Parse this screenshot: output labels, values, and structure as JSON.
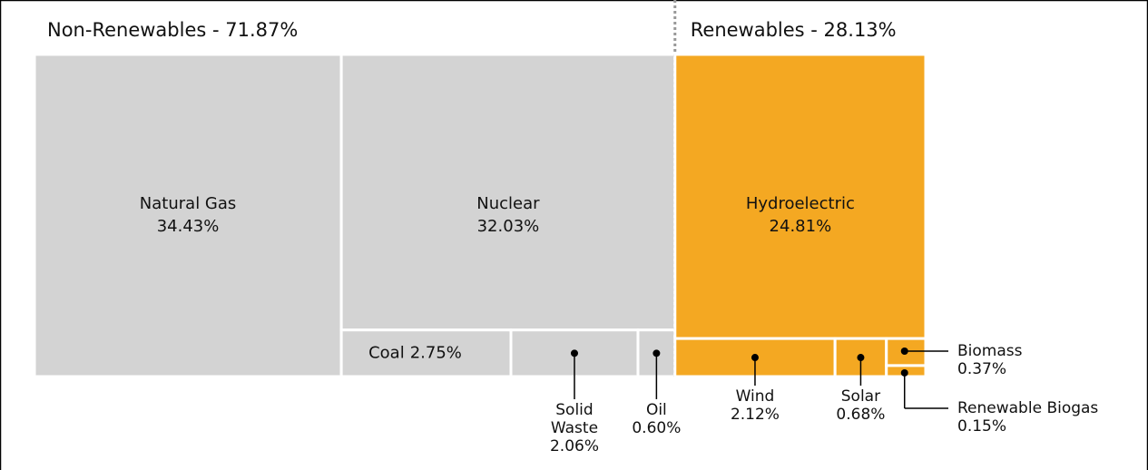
{
  "chart_data": {
    "type": "treemap",
    "groups": [
      {
        "name": "Non-Renewables",
        "label": "Non-Renewables - 71.87%",
        "value": 71.87,
        "color": "#d3d3d3",
        "items": [
          {
            "name": "Natural Gas",
            "value": 34.43,
            "value_label": "34.43%"
          },
          {
            "name": "Nuclear",
            "value": 32.03,
            "value_label": "32.03%"
          },
          {
            "name": "Coal",
            "value": 2.75,
            "value_label": "2.75%"
          },
          {
            "name": "Solid Waste",
            "value": 2.06,
            "value_label": "2.06%"
          },
          {
            "name": "Oil",
            "value": 0.6,
            "value_label": "0.60%"
          }
        ]
      },
      {
        "name": "Renewables",
        "label": "Renewables - 28.13%",
        "value": 28.13,
        "color": "#f4a822",
        "items": [
          {
            "name": "Hydroelectric",
            "value": 24.81,
            "value_label": "24.81%"
          },
          {
            "name": "Wind",
            "value": 2.12,
            "value_label": "2.12%"
          },
          {
            "name": "Solar",
            "value": 0.68,
            "value_label": "0.68%"
          },
          {
            "name": "Biomass",
            "value": 0.37,
            "value_label": "0.37%"
          },
          {
            "name": "Renewable Biogas",
            "value": 0.15,
            "value_label": "0.15%"
          }
        ]
      }
    ]
  }
}
